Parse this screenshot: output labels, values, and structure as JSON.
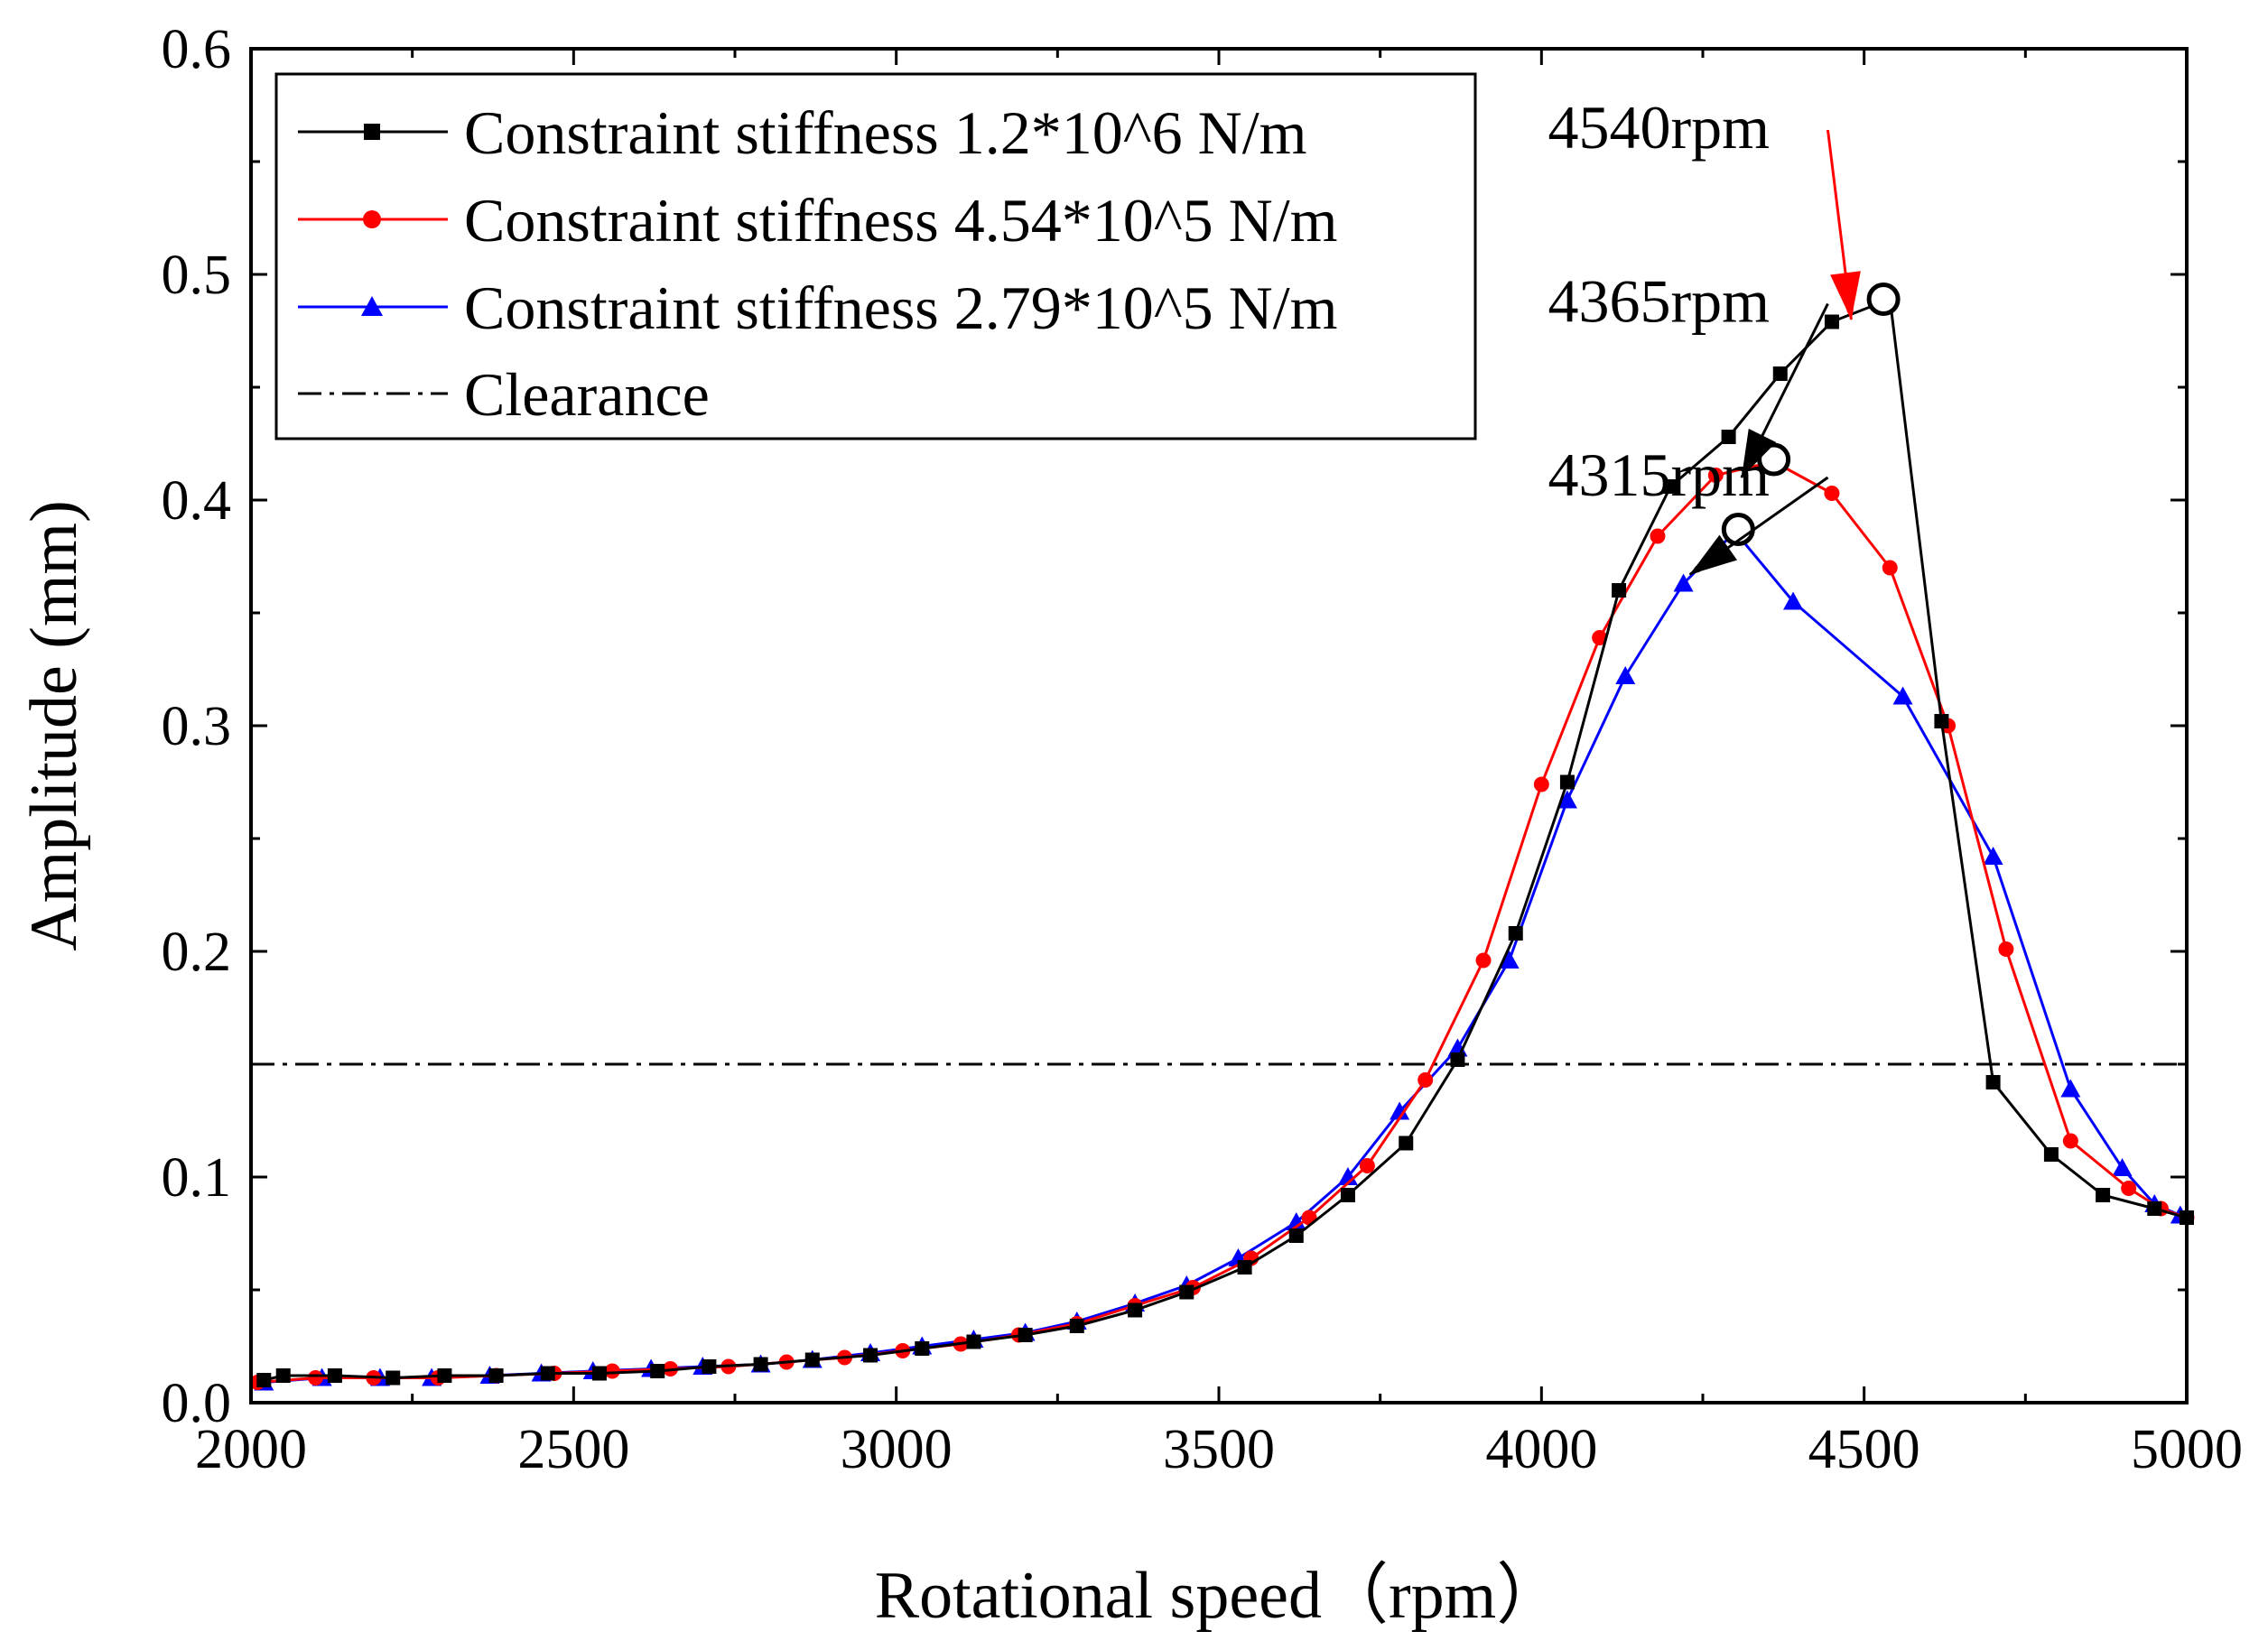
{
  "chart_data": {
    "type": "line",
    "xlabel": "Rotational speed（rpm）",
    "ylabel": "Amplitude (mm)",
    "xlim": [
      2000,
      5000
    ],
    "ylim": [
      0.0,
      0.6
    ],
    "xticks": [
      2000,
      2500,
      3000,
      3500,
      4000,
      4500,
      5000
    ],
    "xtick_labels": [
      "2000",
      "2500",
      "3000",
      "3500",
      "4000",
      "4500",
      "5000"
    ],
    "yticks": [
      0.0,
      0.1,
      0.2,
      0.3,
      0.4,
      0.5,
      0.6
    ],
    "ytick_labels": [
      "0.0",
      "0.1",
      "0.2",
      "0.3",
      "0.4",
      "0.5",
      "0.6"
    ],
    "grid": false,
    "legend_position": "top-left",
    "series": [
      {
        "name": "Constraint stiffness 1.2*10^6 N/m",
        "color": "#000000",
        "marker": "square",
        "points": [
          [
            2020,
            0.01
          ],
          [
            2050,
            0.012
          ],
          [
            2130,
            0.012
          ],
          [
            2220,
            0.011
          ],
          [
            2300,
            0.012
          ],
          [
            2380,
            0.012
          ],
          [
            2460,
            0.013
          ],
          [
            2540,
            0.013
          ],
          [
            2630,
            0.014
          ],
          [
            2710,
            0.016
          ],
          [
            2790,
            0.017
          ],
          [
            2870,
            0.019
          ],
          [
            2960,
            0.021
          ],
          [
            3040,
            0.024
          ],
          [
            3120,
            0.027
          ],
          [
            3200,
            0.03
          ],
          [
            3280,
            0.034
          ],
          [
            3370,
            0.041
          ],
          [
            3450,
            0.049
          ],
          [
            3540,
            0.06
          ],
          [
            3620,
            0.074
          ],
          [
            3700,
            0.092
          ],
          [
            3790,
            0.115
          ],
          [
            3870,
            0.152
          ],
          [
            3960,
            0.208
          ],
          [
            4040,
            0.275
          ],
          [
            4120,
            0.36
          ],
          [
            4200,
            0.406
          ],
          [
            4290,
            0.428
          ],
          [
            4370,
            0.456
          ],
          [
            4450,
            0.479
          ],
          [
            4540,
            0.489
          ],
          [
            4620,
            0.302
          ],
          [
            4700,
            0.142
          ],
          [
            4790,
            0.11
          ],
          [
            4870,
            0.092
          ],
          [
            4950,
            0.086
          ],
          [
            5000,
            0.082
          ]
        ]
      },
      {
        "name": "Constraint stiffness 4.54*10^5 N/m",
        "color": "#ff0000",
        "marker": "circle",
        "points": [
          [
            2010,
            0.009
          ],
          [
            2100,
            0.011
          ],
          [
            2190,
            0.011
          ],
          [
            2290,
            0.011
          ],
          [
            2380,
            0.012
          ],
          [
            2470,
            0.013
          ],
          [
            2560,
            0.014
          ],
          [
            2650,
            0.015
          ],
          [
            2740,
            0.016
          ],
          [
            2830,
            0.018
          ],
          [
            2920,
            0.02
          ],
          [
            3010,
            0.023
          ],
          [
            3100,
            0.026
          ],
          [
            3190,
            0.03
          ],
          [
            3280,
            0.035
          ],
          [
            3370,
            0.043
          ],
          [
            3460,
            0.051
          ],
          [
            3550,
            0.064
          ],
          [
            3640,
            0.082
          ],
          [
            3730,
            0.105
          ],
          [
            3820,
            0.143
          ],
          [
            3910,
            0.196
          ],
          [
            4000,
            0.274
          ],
          [
            4090,
            0.339
          ],
          [
            4180,
            0.384
          ],
          [
            4270,
            0.411
          ],
          [
            4360,
            0.417
          ],
          [
            4450,
            0.403
          ],
          [
            4540,
            0.37
          ],
          [
            4630,
            0.3
          ],
          [
            4720,
            0.201
          ],
          [
            4820,
            0.116
          ],
          [
            4910,
            0.095
          ],
          [
            4960,
            0.086
          ],
          [
            5000,
            0.082
          ]
        ]
      },
      {
        "name": "Constraint stiffness 2.79*10^5 N/m",
        "color": "#0000ff",
        "marker": "triangle",
        "points": [
          [
            2020,
            0.009
          ],
          [
            2110,
            0.011
          ],
          [
            2200,
            0.011
          ],
          [
            2280,
            0.011
          ],
          [
            2370,
            0.012
          ],
          [
            2450,
            0.013
          ],
          [
            2530,
            0.014
          ],
          [
            2620,
            0.015
          ],
          [
            2700,
            0.016
          ],
          [
            2790,
            0.017
          ],
          [
            2870,
            0.019
          ],
          [
            2960,
            0.022
          ],
          [
            3040,
            0.025
          ],
          [
            3120,
            0.028
          ],
          [
            3200,
            0.031
          ],
          [
            3280,
            0.036
          ],
          [
            3370,
            0.044
          ],
          [
            3450,
            0.052
          ],
          [
            3530,
            0.064
          ],
          [
            3620,
            0.08
          ],
          [
            3700,
            0.1
          ],
          [
            3780,
            0.129
          ],
          [
            3870,
            0.157
          ],
          [
            3950,
            0.196
          ],
          [
            4040,
            0.267
          ],
          [
            4130,
            0.322
          ],
          [
            4220,
            0.363
          ],
          [
            4300,
            0.386
          ],
          [
            4390,
            0.355
          ],
          [
            4560,
            0.313
          ],
          [
            4700,
            0.242
          ],
          [
            4820,
            0.139
          ],
          [
            4900,
            0.104
          ],
          [
            4950,
            0.088
          ],
          [
            4990,
            0.083
          ]
        ]
      }
    ],
    "clearance": {
      "name": "Clearance",
      "value": 0.15,
      "style": "dash-dot"
    },
    "peaks": [
      {
        "x": 4530,
        "y": 0.489
      },
      {
        "x": 4360,
        "y": 0.418
      },
      {
        "x": 4305,
        "y": 0.387
      }
    ],
    "annotations": [
      {
        "text": "4540rpm",
        "color": "#ff0000",
        "text_x": 4010,
        "text_y": 0.556,
        "tip_x": 4480,
        "tip_y": 0.48
      },
      {
        "text": "4365rpm",
        "color": "#000000",
        "text_x": 4010,
        "text_y": 0.479,
        "tip_x": 4310,
        "tip_y": 0.41
      },
      {
        "text": "4315rpm",
        "color": "#000000",
        "text_x": 4010,
        "text_y": 0.402,
        "tip_x": 4230,
        "tip_y": 0.367
      }
    ]
  }
}
